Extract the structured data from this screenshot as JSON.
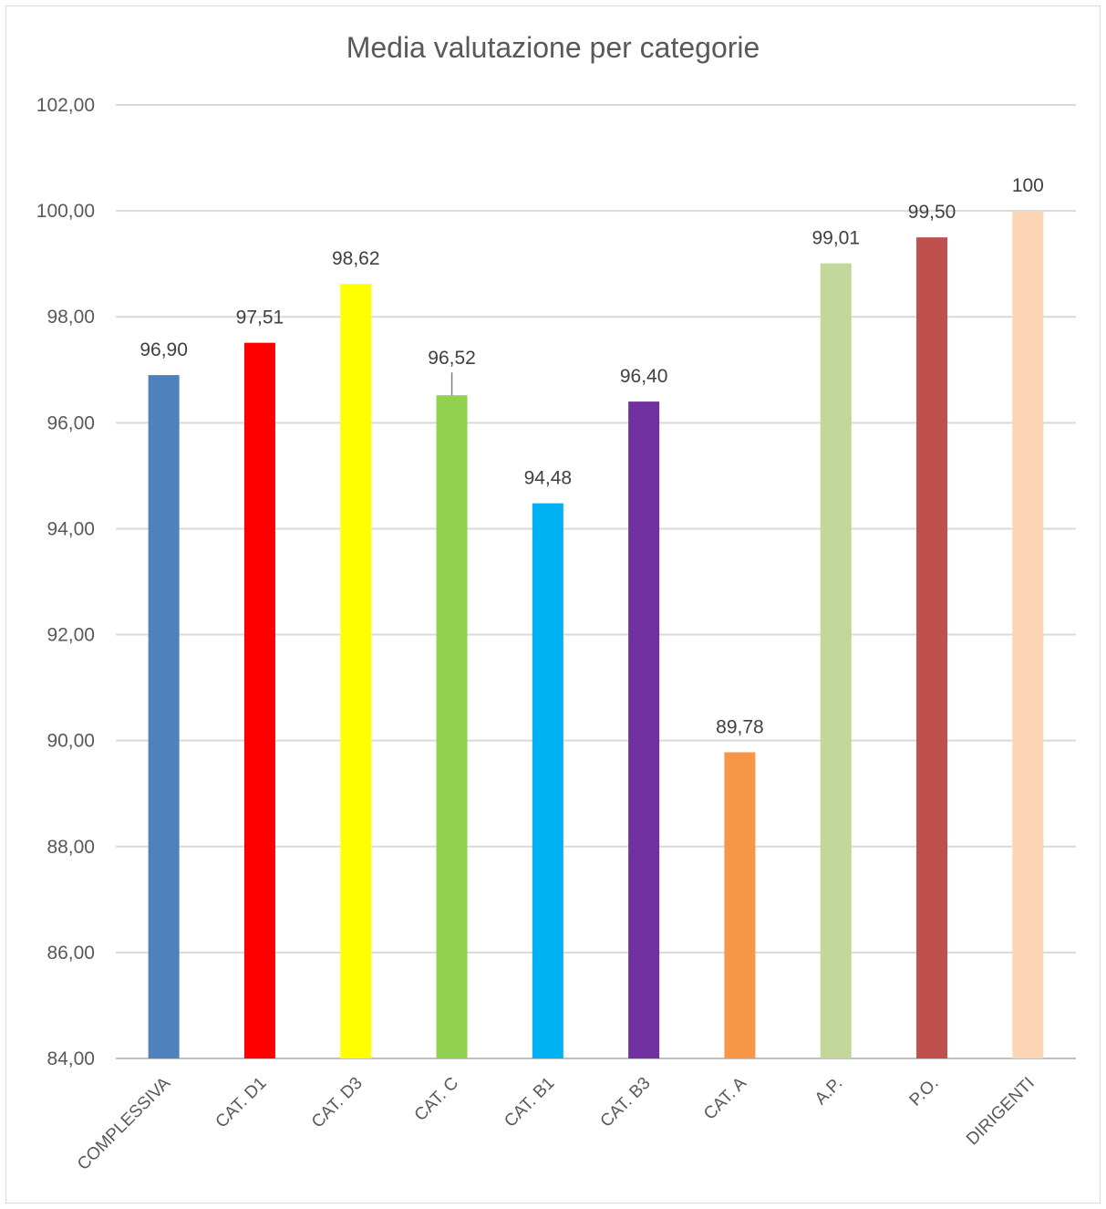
{
  "chart_data": {
    "type": "bar",
    "title": "Media valutazione per categorie",
    "xlabel": "",
    "ylabel": "",
    "ylim": [
      84,
      102
    ],
    "yticks": [
      84,
      86,
      88,
      90,
      92,
      94,
      96,
      98,
      100,
      102
    ],
    "ytick_labels": [
      "84,00",
      "86,00",
      "88,00",
      "90,00",
      "92,00",
      "94,00",
      "96,00",
      "98,00",
      "100,00",
      "102,00"
    ],
    "grid": true,
    "legend": "none",
    "categories": [
      "COMPLESSIVA",
      "CAT. D1",
      "CAT. D3",
      "CAT. C",
      "CAT. B1",
      "CAT. B3",
      "CAT. A",
      "A.P.",
      "P.O.",
      "DIRIGENTI"
    ],
    "values": [
      96.9,
      97.51,
      98.62,
      96.52,
      94.48,
      96.4,
      89.78,
      99.01,
      99.5,
      100
    ],
    "value_labels": [
      "96,90",
      "97,51",
      "98,62",
      "96,52",
      "94,48",
      "96,40",
      "89,78",
      "99,01",
      "99,50",
      "100"
    ],
    "colors": [
      "#4F81BD",
      "#FF0000",
      "#FFFF00",
      "#92D050",
      "#00B0F0",
      "#7030A0",
      "#F79646",
      "#C4D79B",
      "#C0504D",
      "#FCD5B4"
    ]
  }
}
